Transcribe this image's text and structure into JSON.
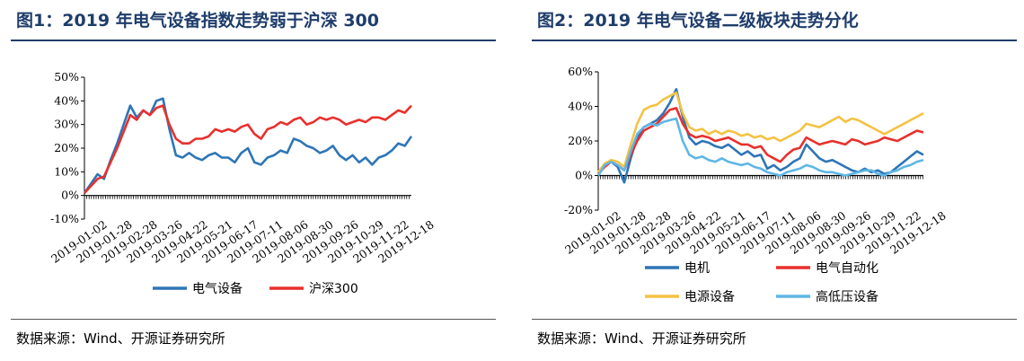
{
  "panels": [
    {
      "title": "图1：2019 年电气设备指数走势弱于沪深 300",
      "source": "数据来源：Wind、开源证券研究所",
      "chart_data": {
        "type": "line",
        "title": "图1：2019 年电气设备指数走势弱于沪深 300",
        "ylim": [
          -10,
          50
        ],
        "yticks": [
          "50%",
          "40%",
          "30%",
          "20%",
          "10%",
          "0%",
          "-10%"
        ],
        "ytick_values": [
          50,
          40,
          30,
          20,
          10,
          0,
          -10
        ],
        "xticks": [
          "2019-01-02",
          "2019-01-28",
          "2019-02-28",
          "2019-03-26",
          "2019-04-22",
          "2019-05-21",
          "2019-06-17",
          "2019-07-11",
          "2019-08-06",
          "2019-08-30",
          "2019-09-26",
          "2019-10-29",
          "2019-11-22",
          "2019-12-18"
        ],
        "x": [
          0,
          2,
          4,
          6,
          8,
          10,
          12,
          14,
          16,
          18,
          20,
          22,
          24,
          26,
          28,
          30,
          32,
          34,
          36,
          38,
          40,
          42,
          44,
          46,
          48,
          50,
          52,
          54,
          56,
          58,
          60,
          62,
          64,
          66,
          68,
          70,
          72,
          74,
          76,
          78,
          80,
          82,
          84,
          86,
          88,
          90,
          92,
          94,
          96,
          98,
          100
        ],
        "series": [
          {
            "name": "电气设备",
            "color": "#2e75b6",
            "values": [
              1,
              5,
              9,
              7,
              15,
              22,
              30,
              38,
              33,
              36,
              34,
              40,
              41,
              28,
              17,
              16,
              18,
              16,
              15,
              17,
              18,
              16,
              16,
              14,
              18,
              20,
              14,
              13,
              16,
              17,
              19,
              18,
              24,
              23,
              21,
              20,
              18,
              19,
              21,
              17,
              15,
              17,
              14,
              16,
              13,
              16,
              17,
              19,
              22,
              21,
              25
            ]
          },
          {
            "name": "沪深300",
            "color": "#e8302c",
            "values": [
              1,
              4,
              7,
              8,
              14,
              20,
              27,
              34,
              32,
              36,
              34,
              37,
              38,
              30,
              24,
              22,
              22,
              24,
              24,
              25,
              28,
              27,
              28,
              27,
              29,
              30,
              26,
              24,
              28,
              29,
              31,
              30,
              32,
              33,
              30,
              31,
              33,
              32,
              33,
              32,
              30,
              31,
              32,
              31,
              33,
              33,
              32,
              34,
              36,
              35,
              38
            ]
          }
        ],
        "legend": "bottom"
      }
    },
    {
      "title": "图2：2019 年电气设备二级板块走势分化",
      "source": "数据来源：Wind、开源证券研究所",
      "chart_data": {
        "type": "line",
        "title": "图2：2019 年电气设备二级板块走势分化",
        "ylim": [
          -20,
          60
        ],
        "yticks": [
          "60%",
          "40%",
          "20%",
          "0%",
          "-20%"
        ],
        "ytick_values": [
          60,
          40,
          20,
          0,
          -20
        ],
        "xticks": [
          "2019-01-02",
          "2019-01-28",
          "2019-02-28",
          "2019-03-26",
          "2019-04-22",
          "2019-05-21",
          "2019-06-17",
          "2019-07-11",
          "2019-08-06",
          "2019-08-30",
          "2019-09-26",
          "2019-10-29",
          "2019-11-22",
          "2019-12-18"
        ],
        "x": [
          0,
          2,
          4,
          6,
          8,
          10,
          12,
          14,
          16,
          18,
          20,
          22,
          24,
          26,
          28,
          30,
          32,
          34,
          36,
          38,
          40,
          42,
          44,
          46,
          48,
          50,
          52,
          54,
          56,
          58,
          60,
          62,
          64,
          66,
          68,
          70,
          72,
          74,
          76,
          78,
          80,
          82,
          84,
          86,
          88,
          90,
          92,
          94,
          96,
          98,
          100
        ],
        "series": [
          {
            "name": "电机",
            "color": "#2e75b6",
            "values": [
              0,
              6,
              8,
              5,
              -4,
              10,
              22,
              28,
              30,
              32,
              36,
              42,
              50,
              34,
              22,
              18,
              20,
              19,
              17,
              16,
              18,
              15,
              12,
              14,
              11,
              12,
              4,
              6,
              3,
              5,
              8,
              10,
              18,
              14,
              10,
              8,
              9,
              7,
              5,
              3,
              2,
              4,
              2,
              3,
              1,
              2,
              5,
              8,
              11,
              14,
              12
            ]
          },
          {
            "name": "电气自动化",
            "color": "#e8302c",
            "values": [
              1,
              5,
              8,
              6,
              3,
              12,
              20,
              26,
              28,
              30,
              34,
              38,
              39,
              30,
              24,
              22,
              23,
              22,
              20,
              21,
              22,
              20,
              18,
              18,
              16,
              17,
              12,
              10,
              8,
              12,
              15,
              16,
              22,
              20,
              18,
              19,
              20,
              19,
              18,
              21,
              20,
              18,
              19,
              20,
              22,
              21,
              20,
              22,
              24,
              26,
              25
            ]
          },
          {
            "name": "电源设备",
            "color": "#f4c242",
            "values": [
              2,
              7,
              9,
              8,
              5,
              18,
              30,
              38,
              40,
              41,
              44,
              46,
              48,
              36,
              28,
              26,
              27,
              24,
              26,
              24,
              26,
              25,
              23,
              24,
              22,
              23,
              21,
              22,
              20,
              22,
              24,
              26,
              30,
              29,
              28,
              30,
              32,
              34,
              31,
              33,
              32,
              30,
              28,
              26,
              24,
              26,
              28,
              30,
              32,
              34,
              36
            ]
          },
          {
            "name": "高低压设备",
            "color": "#5fb6e5",
            "values": [
              0,
              6,
              8,
              6,
              3,
              14,
              24,
              28,
              30,
              29,
              31,
              32,
              33,
              20,
              12,
              10,
              11,
              9,
              8,
              10,
              8,
              7,
              6,
              7,
              5,
              4,
              2,
              1,
              0,
              2,
              3,
              4,
              6,
              5,
              3,
              2,
              2,
              1,
              0,
              1,
              2,
              3,
              3,
              1,
              0,
              2,
              3,
              5,
              6,
              8,
              9
            ]
          }
        ],
        "legend": "bottom"
      }
    }
  ]
}
